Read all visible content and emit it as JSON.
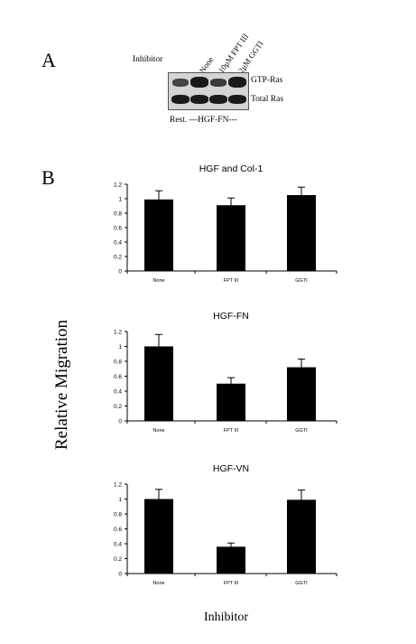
{
  "panel_a": {
    "label": "A",
    "inhibitor_label": "Inhibitor",
    "lanes": [
      "None",
      "10μM FPT III",
      "2μM GGTI"
    ],
    "bands": [
      "GTP-Ras",
      "Total Ras"
    ],
    "condition_label": "Rest. ---HGF-FN---"
  },
  "panel_b": {
    "label": "B"
  },
  "y_axis_title": "Relative Migration",
  "x_axis_title": "Inhibitor",
  "chart_data": [
    {
      "type": "bar",
      "title": "HGF and Col-1",
      "categories": [
        "None",
        "FPT III",
        "GGTI"
      ],
      "values": [
        0.99,
        0.91,
        1.05
      ],
      "errors": [
        0.12,
        0.1,
        0.11
      ],
      "ylim": [
        0,
        1.2
      ],
      "yticks": [
        "0",
        "0.2",
        "0.4",
        "0.6",
        "0.8",
        "1",
        "1.2"
      ],
      "xlabel": "",
      "ylabel": ""
    },
    {
      "type": "bar",
      "title": "HGF-FN",
      "categories": [
        "None",
        "FPT III",
        "GGTI"
      ],
      "values": [
        1.0,
        0.5,
        0.72
      ],
      "errors": [
        0.16,
        0.08,
        0.11
      ],
      "ylim": [
        0,
        1.2
      ],
      "yticks": [
        "0",
        "0.2",
        "0.4",
        "0.6",
        "0.8",
        "1",
        "1.2"
      ],
      "xlabel": "",
      "ylabel": ""
    },
    {
      "type": "bar",
      "title": "HGF-VN",
      "categories": [
        "None",
        "FPT III",
        "GGTI"
      ],
      "values": [
        1.0,
        0.36,
        0.99
      ],
      "errors": [
        0.13,
        0.05,
        0.13
      ],
      "ylim": [
        0,
        1.2
      ],
      "yticks": [
        "0",
        "0.2",
        "0.4",
        "0.6",
        "0.8",
        "1",
        "1.2"
      ],
      "xlabel": "",
      "ylabel": ""
    }
  ]
}
